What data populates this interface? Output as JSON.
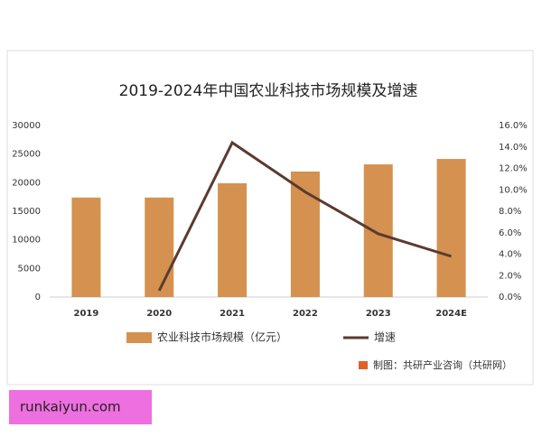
{
  "chart_data": {
    "type": "bar",
    "title": "2019-2024年中国农业科技市场规模及增速",
    "categories": [
      "2019",
      "2020",
      "2021",
      "2022",
      "2023",
      "2024E"
    ],
    "series": [
      {
        "name": "农业科技市场规模（亿元）",
        "color": "#d4914f",
        "values": [
          17400,
          17400,
          19900,
          21950,
          23200,
          24150
        ]
      },
      {
        "name": "增速",
        "color": "#5b3b30",
        "type": "line",
        "axis": "y2",
        "values": [
          null,
          0.6,
          14.4,
          9.8,
          5.9,
          3.8
        ]
      }
    ],
    "ylim": [
      0,
      30000
    ],
    "yticks": [
      0,
      5000,
      10000,
      15000,
      20000,
      25000,
      30000
    ],
    "y2lim": [
      0,
      16
    ],
    "y2ticks": [
      {
        "value": 0,
        "label": "0.0%"
      },
      {
        "value": 2,
        "label": "2.0%"
      },
      {
        "value": 4,
        "label": "4.0%"
      },
      {
        "value": 6,
        "label": "6.0%"
      },
      {
        "value": 8,
        "label": "8.0%"
      },
      {
        "value": 10,
        "label": "10.0%"
      },
      {
        "value": 12,
        "label": "12.0%"
      },
      {
        "value": 14,
        "label": "14.0%"
      },
      {
        "value": 16,
        "label": "16.0%"
      }
    ],
    "source": "制图：共研产业咨询（共研网）"
  },
  "watermark": "runkaiyun.com"
}
